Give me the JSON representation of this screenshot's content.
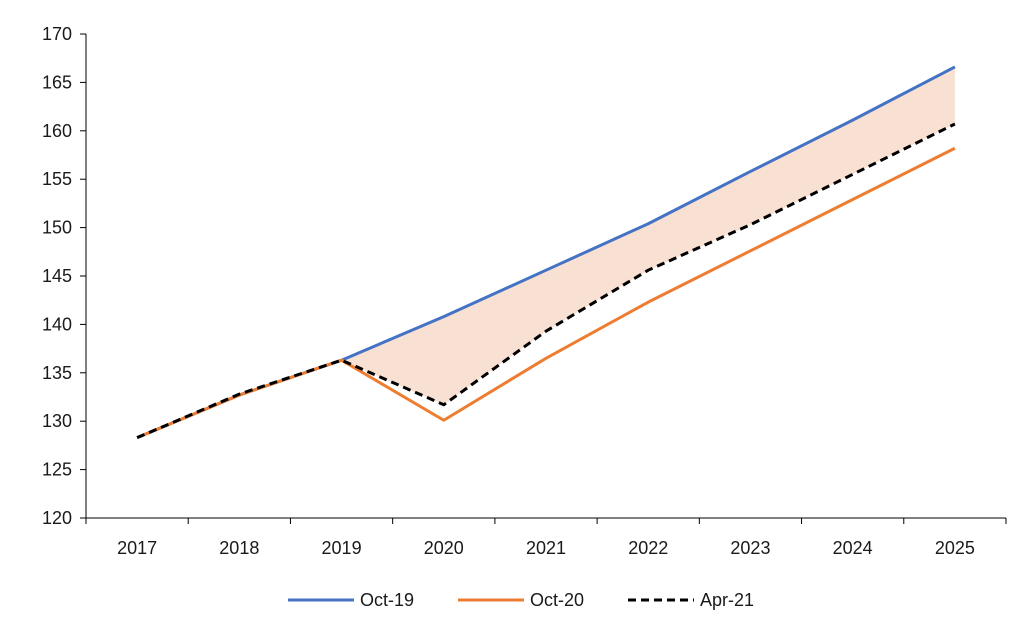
{
  "chart_data": {
    "type": "line",
    "title": "",
    "xlabel": "",
    "ylabel": "",
    "categories": [
      "2017",
      "2018",
      "2019",
      "2020",
      "2021",
      "2022",
      "2023",
      "2024",
      "2025"
    ],
    "ylim": [
      120,
      170
    ],
    "yticks": [
      120,
      125,
      130,
      135,
      140,
      145,
      150,
      155,
      160,
      165,
      170
    ],
    "grid": false,
    "legend_position": "bottom",
    "shaded_band": {
      "between": [
        "Oct-19",
        "Apr-21"
      ],
      "from_category": "2019",
      "color": "#F8E1D3"
    },
    "series": [
      {
        "name": "Oct-19",
        "color": "#4472C4",
        "dash": "solid",
        "values": [
          128.3,
          132.7,
          136.3,
          140.8,
          145.6,
          150.4,
          155.8,
          161.1,
          166.6
        ]
      },
      {
        "name": "Oct-20",
        "color": "#ED7D31",
        "dash": "solid",
        "values": [
          128.3,
          132.7,
          136.3,
          130.1,
          136.5,
          142.3,
          147.6,
          152.9,
          158.2
        ]
      },
      {
        "name": "Apr-21",
        "color": "#000000",
        "dash": "dashed",
        "values": [
          128.3,
          132.8,
          136.3,
          131.7,
          139.3,
          145.6,
          150.3,
          155.5,
          160.7
        ]
      }
    ]
  }
}
